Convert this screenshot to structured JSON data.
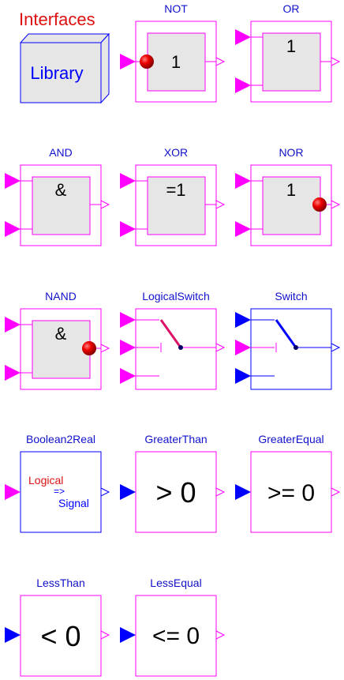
{
  "library": {
    "title": "Interfaces",
    "icon_text": "Library"
  },
  "blocks": {
    "not": {
      "label": "NOT",
      "symbol": "1"
    },
    "or": {
      "label": "OR",
      "symbol": "1"
    },
    "and": {
      "label": "AND",
      "symbol": "&"
    },
    "xor": {
      "label": "XOR",
      "symbol": "=1"
    },
    "nor": {
      "label": "NOR",
      "symbol": "1"
    },
    "nand": {
      "label": "NAND",
      "symbol": "&"
    },
    "logical_switch": {
      "label": "LogicalSwitch"
    },
    "switch": {
      "label": "Switch"
    },
    "boolean2real": {
      "label": "Boolean2Real",
      "line1": "Logical",
      "line2": "=>",
      "line3": "Signal"
    },
    "greater_than": {
      "label": "GreaterThan",
      "symbol": "> 0"
    },
    "greater_equal": {
      "label": "GreaterEqual",
      "symbol": ">= 0"
    },
    "less_than": {
      "label": "LessThan",
      "symbol": "< 0"
    },
    "less_equal": {
      "label": "LessEqual",
      "symbol": "<= 0"
    }
  },
  "colors": {
    "title_red": "#dd1111",
    "library_blue": "#0000ff",
    "logic_magenta": "#ff00ff",
    "signal_blue": "#0000ff",
    "label_blue": "#1111cc",
    "box_fill": "#e6e6e6",
    "negation_red": "#dd0000",
    "switch_lever_red": "#dd1166"
  }
}
